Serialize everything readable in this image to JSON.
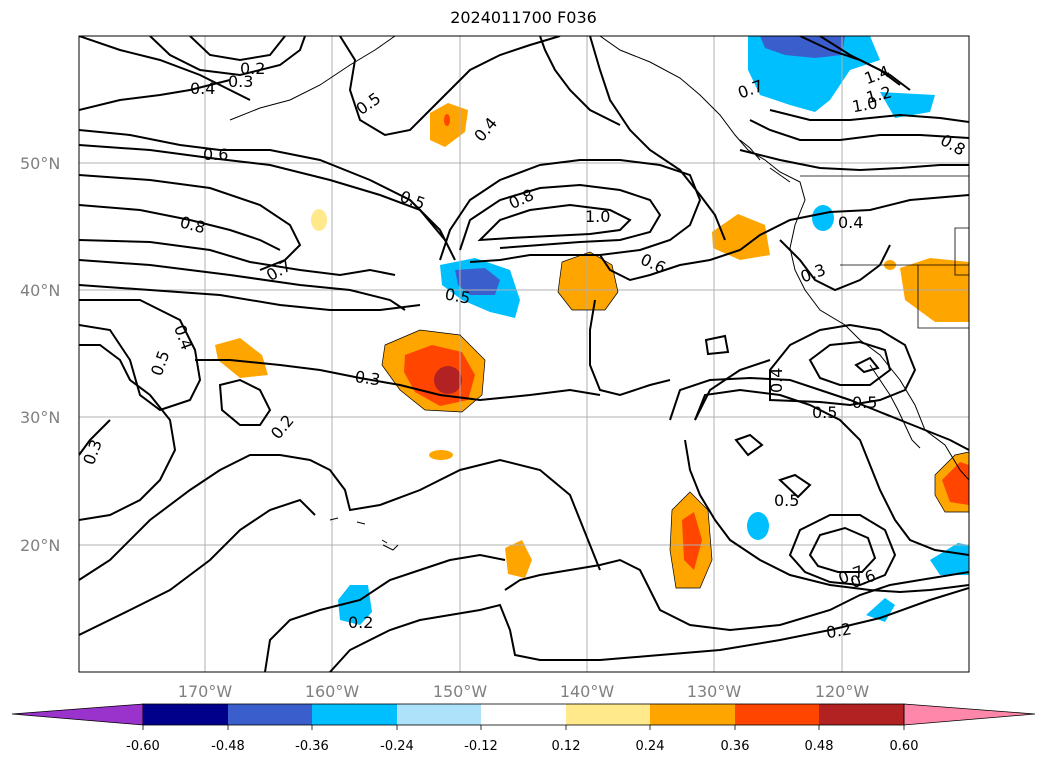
{
  "title": "2024011700 F036",
  "lat_labels": [
    "50°N",
    "40°N",
    "30°N",
    "20°N"
  ],
  "lon_labels": [
    "170°W",
    "160°W",
    "150°W",
    "140°W",
    "130°W",
    "120°W"
  ],
  "contour_labels": [
    "0.2",
    "0.3",
    "0.4",
    "0.5",
    "0.4",
    "0.6",
    "0.5",
    "0.8",
    "1.0",
    "0.8",
    "0.7",
    "0.6",
    "0.5",
    "0.4",
    "0.5",
    "0.3",
    "0.2",
    "0.3",
    "0.4",
    "0.5",
    "0.5",
    "0.5",
    "0.7",
    "0.6",
    "0.2",
    "0.2",
    "0.3",
    "0.4",
    "1.4",
    "1.2",
    "1.0",
    "0.7",
    "0.8"
  ],
  "colorbar": {
    "ticks": [
      "-0.60",
      "-0.48",
      "-0.36",
      "-0.24",
      "-0.12",
      "0.12",
      "0.24",
      "0.36",
      "0.48",
      "0.60"
    ],
    "colors": {
      "under": "#9933cc",
      "b1": "#00008b",
      "b2": "#3a5fcd",
      "b3": "#00bfff",
      "b4": "#aee2fb",
      "b5": "#ffffff",
      "b6": "#ffe98a",
      "b7": "#ffa500",
      "b8": "#ff4500",
      "b9": "#b22222",
      "over": "#ff88aa"
    }
  }
}
